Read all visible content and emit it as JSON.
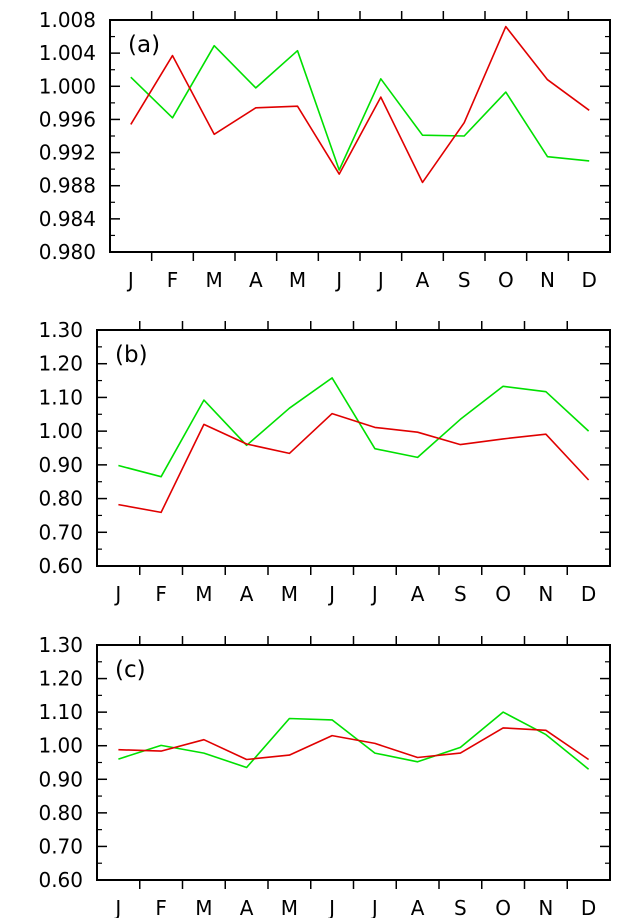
{
  "chart_data": [
    {
      "type": "line",
      "panel_label": "(a)",
      "categories": [
        "J",
        "F",
        "M",
        "A",
        "M",
        "J",
        "J",
        "A",
        "S",
        "O",
        "N",
        "D"
      ],
      "ylim": [
        0.98,
        1.008
      ],
      "yticks": [
        "0.980",
        "0.984",
        "0.988",
        "0.992",
        "0.996",
        "1.000",
        "1.004",
        "1.008"
      ],
      "grid": false,
      "series": [
        {
          "color": "#00e000",
          "values": [
            1.0011,
            0.9962,
            1.0049,
            0.9998,
            1.0043,
            0.9899,
            1.0009,
            0.9941,
            0.994,
            0.9993,
            0.9915,
            0.991
          ]
        },
        {
          "color": "#e00000",
          "values": [
            0.9954,
            1.0037,
            0.9942,
            0.9974,
            0.9976,
            0.9894,
            0.9987,
            0.9884,
            0.9956,
            1.0072,
            1.0008,
            0.9971
          ]
        }
      ]
    },
    {
      "type": "line",
      "panel_label": "(b)",
      "categories": [
        "J",
        "F",
        "M",
        "A",
        "M",
        "J",
        "J",
        "A",
        "S",
        "O",
        "N",
        "D"
      ],
      "ylim": [
        0.6,
        1.3
      ],
      "yticks": [
        "0.60",
        "0.70",
        "0.80",
        "0.90",
        "1.00",
        "1.10",
        "1.20",
        "1.30"
      ],
      "grid": false,
      "series": [
        {
          "color": "#00e000",
          "values": [
            0.898,
            0.865,
            1.092,
            0.958,
            1.068,
            1.158,
            0.948,
            0.922,
            1.035,
            1.133,
            1.117,
            1.0
          ]
        },
        {
          "color": "#e00000",
          "values": [
            0.782,
            0.759,
            1.02,
            0.962,
            0.934,
            1.052,
            1.011,
            0.997,
            0.96,
            0.977,
            0.991,
            0.855
          ]
        }
      ]
    },
    {
      "type": "line",
      "panel_label": "(c)",
      "categories": [
        "J",
        "F",
        "M",
        "A",
        "M",
        "J",
        "J",
        "A",
        "S",
        "O",
        "N",
        "D"
      ],
      "ylim": [
        0.6,
        1.3
      ],
      "yticks": [
        "0.60",
        "0.70",
        "0.80",
        "0.90",
        "1.00",
        "1.10",
        "1.20",
        "1.30"
      ],
      "grid": false,
      "series": [
        {
          "color": "#00e000",
          "values": [
            0.96,
            1.001,
            0.978,
            0.935,
            1.081,
            1.077,
            0.978,
            0.952,
            0.995,
            1.1,
            1.033,
            0.93
          ]
        },
        {
          "color": "#e00000",
          "values": [
            0.988,
            0.984,
            1.018,
            0.959,
            0.972,
            1.03,
            1.007,
            0.965,
            0.978,
            1.053,
            1.046,
            0.959
          ]
        }
      ]
    }
  ]
}
